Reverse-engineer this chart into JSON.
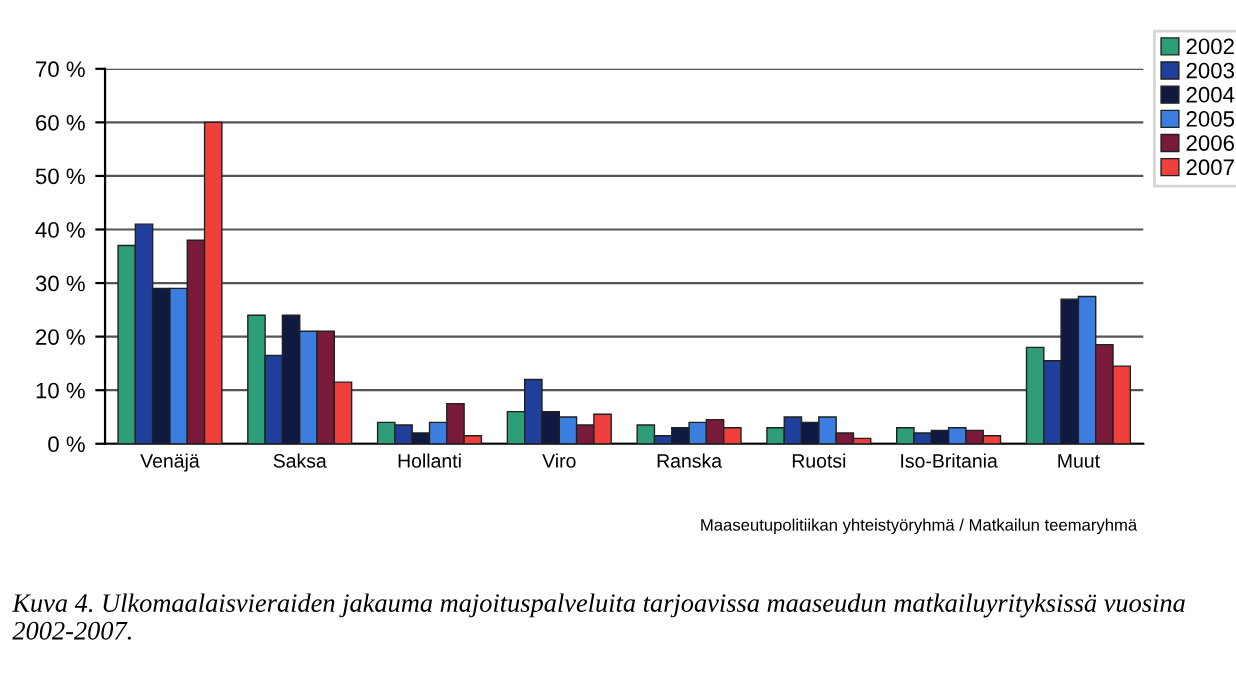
{
  "chart_data": {
    "type": "bar",
    "categories": [
      "Venäjä",
      "Saksa",
      "Hollanti",
      "Viro",
      "Ranska",
      "Ruotsi",
      "Iso-Britania",
      "Muut"
    ],
    "series": [
      {
        "name": "2002",
        "color": "#2e9e78",
        "values": [
          37,
          24,
          4,
          6,
          3.5,
          3,
          3,
          18
        ]
      },
      {
        "name": "2003",
        "color": "#1f3f9a",
        "values": [
          41,
          16.5,
          3.5,
          12,
          1.5,
          5,
          2,
          15.5
        ]
      },
      {
        "name": "2004",
        "color": "#101a40",
        "values": [
          29,
          24,
          2,
          6,
          3,
          4,
          2.5,
          27
        ]
      },
      {
        "name": "2005",
        "color": "#3c7ee0",
        "values": [
          29,
          21,
          4,
          5,
          4,
          5,
          3,
          27.5
        ]
      },
      {
        "name": "2006",
        "color": "#7a1a3a",
        "values": [
          38,
          21,
          7.5,
          3.5,
          4.5,
          2,
          2.5,
          18.5
        ]
      },
      {
        "name": "2007",
        "color": "#f0403c",
        "values": [
          60,
          11.5,
          1.5,
          5.5,
          3,
          1,
          1.5,
          14.5
        ]
      }
    ],
    "ylim": [
      0,
      70
    ],
    "yticks": [
      {
        "value": 0,
        "label": "0 %"
      },
      {
        "value": 10,
        "label": "10 %"
      },
      {
        "value": 20,
        "label": "20 %"
      },
      {
        "value": 30,
        "label": "30 %"
      },
      {
        "value": 40,
        "label": "40 %"
      },
      {
        "value": 50,
        "label": "50 %"
      },
      {
        "value": 60,
        "label": "60 %"
      },
      {
        "value": 70,
        "label": "70 %"
      }
    ],
    "grid": "y",
    "legend": "top right",
    "annotations": [
      "Maaseutupolitiikan yhteistyöryhmä / Matkailun teemaryhmä",
      "Kuva 4. Ulkomaalaisvieraiden jakauma majoituspalveluita tarjoavissa maaseudun matkailuyrityksissä vuosina 2002-2007."
    ]
  }
}
